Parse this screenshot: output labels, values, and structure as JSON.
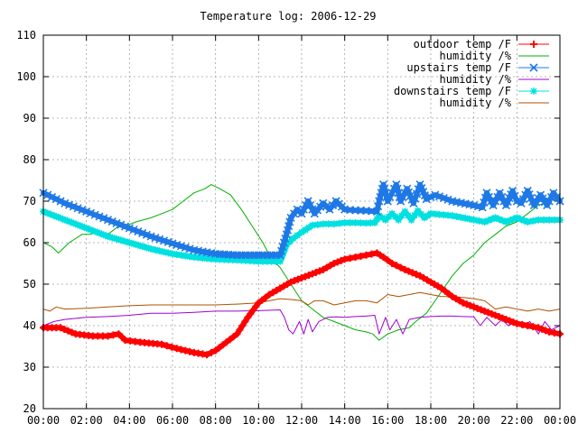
{
  "chart_data": {
    "type": "line",
    "title": "Temperature log: 2006-12-29",
    "xlabel": "",
    "ylabel": "",
    "xlim": [
      0,
      24
    ],
    "ylim": [
      20,
      110
    ],
    "grid": true,
    "legend_position": "top-right",
    "x_tick_labels": [
      "00:00",
      "02:00",
      "04:00",
      "06:00",
      "08:00",
      "10:00",
      "12:00",
      "14:00",
      "16:00",
      "18:00",
      "20:00",
      "22:00",
      "00:00"
    ],
    "x_tick_values": [
      0,
      2,
      4,
      6,
      8,
      10,
      12,
      14,
      16,
      18,
      20,
      22,
      24
    ],
    "y_tick_values": [
      20,
      30,
      40,
      50,
      60,
      70,
      80,
      90,
      100,
      110
    ],
    "y_tick_labels": [
      "20",
      "30",
      "40",
      "50",
      "60",
      "70",
      "80",
      "90",
      "100",
      "110"
    ],
    "series": [
      {
        "name": "outdoor temp /F",
        "color": "#ff0000",
        "marker": "plus",
        "x": [
          0,
          0.8,
          1.5,
          2.3,
          3.0,
          3.5,
          3.8,
          4.5,
          5.5,
          6.2,
          7.0,
          7.6,
          8.0,
          8.5,
          9.0,
          9.5,
          10.0,
          10.5,
          11.0,
          11.5,
          12.0,
          12.5,
          13.0,
          13.5,
          14.0,
          14.5,
          15.0,
          15.5,
          15.8,
          16.2,
          16.8,
          17.5,
          18.0,
          18.5,
          19.0,
          19.5,
          20.0,
          20.5,
          21.0,
          21.5,
          22.0,
          22.5,
          23.0,
          23.5,
          24.0
        ],
        "y": [
          39.5,
          39.5,
          38,
          37.5,
          37.5,
          38,
          36.5,
          36,
          35.5,
          34.5,
          33.5,
          33,
          34,
          36,
          38,
          42,
          45.5,
          47.5,
          49,
          50.5,
          51.5,
          52.5,
          53.5,
          55,
          56,
          56.5,
          57,
          57.5,
          56.5,
          55,
          53.5,
          52,
          50.5,
          49,
          47,
          45.5,
          44.5,
          43.5,
          42.5,
          41.5,
          40.5,
          40,
          39.5,
          38.5,
          38
        ]
      },
      {
        "name": "humidity /%",
        "color": "#00b000",
        "marker": "none",
        "x": [
          0,
          0.4,
          0.7,
          1.2,
          1.8,
          2.2,
          2.5,
          3.0,
          3.5,
          3.8,
          4.3,
          5.0,
          5.5,
          6.0,
          6.5,
          7.0,
          7.5,
          7.8,
          8.2,
          8.7,
          9.2,
          9.7,
          10.2,
          10.6,
          11.0,
          11.5,
          12.0,
          12.5,
          13.0,
          13.5,
          14.0,
          14.5,
          15.0,
          15.3,
          15.6,
          16.0,
          16.5,
          17.0,
          17.3,
          17.8,
          18.2,
          18.6,
          19.0,
          19.5,
          20.0,
          20.5,
          21.0,
          21.5,
          22.0,
          22.5,
          23.0,
          23.5,
          24.0
        ],
        "y": [
          60,
          59,
          57.5,
          60,
          62,
          62,
          63,
          62,
          64,
          64,
          65,
          66,
          67,
          68,
          70,
          72,
          73,
          74,
          73,
          71.5,
          68,
          64,
          60,
          56,
          54,
          50,
          46,
          44,
          42,
          41,
          40,
          39,
          38.5,
          38,
          36.5,
          38,
          39,
          39.5,
          41,
          43,
          46,
          49,
          52,
          55,
          57,
          60,
          62,
          64,
          65,
          67,
          69,
          70,
          71
        ]
      },
      {
        "name": "upstairs temp /F",
        "color": "#1e78e6",
        "marker": "x",
        "x": [
          0,
          1,
          2,
          3,
          4,
          5,
          6,
          7,
          8,
          9,
          10,
          11,
          11.3,
          11.5,
          11.8,
          12.0,
          12.3,
          12.6,
          13.0,
          13.3,
          13.6,
          14.0,
          14.5,
          15.0,
          15.5,
          15.6,
          15.8,
          16.0,
          16.4,
          16.6,
          16.9,
          17.2,
          17.5,
          17.8,
          18.2,
          19,
          20,
          20.4,
          20.6,
          20.9,
          21.2,
          21.5,
          21.8,
          22.0,
          22.2,
          22.5,
          22.8,
          23.1,
          23.4,
          23.7,
          24.0
        ],
        "y": [
          72,
          69.5,
          67.5,
          65.5,
          63.5,
          61.5,
          59.8,
          58.2,
          57.3,
          57,
          57,
          57,
          62,
          66,
          68,
          67,
          70,
          67,
          69.5,
          68,
          70,
          68,
          67.8,
          67.7,
          67.5,
          70,
          74,
          70,
          74,
          70,
          73,
          69.5,
          74,
          70.5,
          71.5,
          70,
          69,
          68.5,
          72,
          69,
          72,
          69,
          72.5,
          70,
          69.5,
          72.5,
          69,
          71.5,
          69,
          72,
          70
        ]
      },
      {
        "name": "humidity /%",
        "color": "#a000d0",
        "marker": "none",
        "x": [
          0,
          0.5,
          1,
          2,
          3,
          4,
          5,
          6,
          7,
          8,
          9,
          10,
          11,
          11.2,
          11.4,
          11.6,
          11.9,
          12.1,
          12.3,
          12.5,
          12.8,
          13.2,
          13.6,
          14.0,
          14.5,
          15.0,
          15.4,
          15.6,
          15.9,
          16.1,
          16.4,
          16.7,
          17.0,
          17.5,
          18.0,
          18.5,
          19.0,
          19.5,
          20.0,
          20.3,
          20.6,
          21.0,
          21.3,
          21.6,
          22.0,
          22.3,
          22.6,
          23.0,
          23.3,
          23.6,
          24.0
        ],
        "y": [
          40,
          41,
          41.5,
          42,
          42.2,
          42.5,
          43,
          43,
          43.2,
          43.5,
          43.5,
          43.6,
          43.8,
          42,
          39,
          38,
          41,
          38,
          41.5,
          38.5,
          41,
          42,
          42.1,
          42,
          42.2,
          42.3,
          42.5,
          38,
          42,
          39,
          41.5,
          38,
          41.5,
          42,
          42.2,
          42.3,
          42.3,
          42.2,
          42.1,
          40,
          42,
          40,
          41.5,
          40,
          41,
          39.5,
          41,
          38,
          41,
          39,
          40
        ]
      },
      {
        "name": "downstairs temp /F",
        "color": "#00e0e0",
        "marker": "star",
        "x": [
          0,
          1,
          2,
          3,
          4,
          5,
          6,
          7,
          8,
          9,
          10,
          11,
          11.3,
          11.6,
          12.0,
          12.5,
          13.0,
          13.5,
          14.0,
          14.5,
          15.0,
          15.4,
          15.6,
          15.9,
          16.2,
          16.5,
          16.8,
          17.1,
          17.4,
          17.7,
          18.0,
          19,
          20,
          20.5,
          21,
          21.5,
          22,
          22.5,
          23,
          23.5,
          24.0
        ],
        "y": [
          67.5,
          65.5,
          63.5,
          61.5,
          60,
          58.5,
          57.3,
          56.5,
          56,
          55.8,
          55.5,
          55.5,
          59.5,
          61,
          62.5,
          64.2,
          64.5,
          64.5,
          64.8,
          64.8,
          64.7,
          64.8,
          66.5,
          65.5,
          67,
          65.5,
          67.5,
          65.5,
          67.7,
          66,
          67,
          66.5,
          65.5,
          65,
          66,
          65,
          66,
          65,
          65.5,
          65.5,
          65.5
        ]
      },
      {
        "name": "humidity /%",
        "color": "#b05000",
        "marker": "none",
        "x": [
          0,
          0.3,
          0.6,
          1,
          2,
          3,
          4,
          5,
          6,
          7,
          8,
          9,
          10,
          10.5,
          11,
          11.5,
          12,
          12.3,
          12.6,
          13,
          13.5,
          14,
          14.5,
          15,
          15.5,
          16,
          16.5,
          17,
          17.5,
          18,
          18.5,
          19,
          19.5,
          20,
          20.5,
          21,
          21.5,
          22,
          22.5,
          23,
          23.5,
          24.0
        ],
        "y": [
          44,
          43.5,
          44.5,
          44,
          44.2,
          44.5,
          44.8,
          45,
          45,
          45,
          45,
          45.2,
          45.5,
          46,
          46.5,
          46.3,
          46,
          45,
          46,
          46,
          45,
          45.5,
          46,
          46,
          45.5,
          47.5,
          47,
          47.5,
          48,
          47.5,
          47,
          47,
          46.8,
          46.5,
          46,
          44,
          44.5,
          44,
          43.5,
          44,
          43.5,
          44
        ]
      }
    ]
  }
}
